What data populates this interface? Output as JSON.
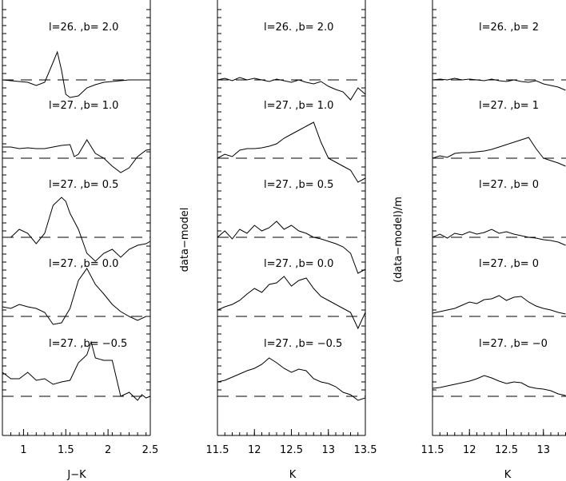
{
  "colors": {
    "ink": "#000000",
    "background": "#ffffff"
  },
  "chart_data": [
    {
      "type": "line",
      "xlabel": "J−K",
      "ylabel": "",
      "xlim": [
        0.75,
        2.5
      ],
      "xticks": [
        1,
        1.5,
        2,
        2.5
      ],
      "xticklabels": [
        "1",
        "1.5",
        "2",
        "2.5"
      ],
      "baseline": "dashed",
      "series": [
        {
          "name": "l=26. ,b=  2.0",
          "x": [
            0.75,
            0.85,
            0.95,
            1.05,
            1.15,
            1.25,
            1.35,
            1.4,
            1.45,
            1.5,
            1.55,
            1.65,
            1.75,
            1.85,
            1.95,
            2.05,
            2.15,
            2.25,
            2.35,
            2.45,
            2.5
          ],
          "y": [
            0.0,
            -0.01,
            -0.02,
            -0.03,
            -0.07,
            -0.03,
            0.22,
            0.35,
            0.12,
            -0.18,
            -0.22,
            -0.2,
            -0.1,
            -0.06,
            -0.03,
            -0.02,
            -0.01,
            0.0,
            0.0,
            0.0,
            0.0
          ]
        },
        {
          "name": "l=27. ,b=  1.0",
          "x": [
            0.75,
            0.85,
            0.95,
            1.05,
            1.15,
            1.25,
            1.35,
            1.45,
            1.55,
            1.6,
            1.65,
            1.75,
            1.85,
            1.95,
            2.05,
            2.15,
            2.25,
            2.35,
            2.45,
            2.5
          ],
          "y": [
            0.14,
            0.14,
            0.12,
            0.13,
            0.12,
            0.12,
            0.14,
            0.16,
            0.17,
            0.02,
            0.05,
            0.23,
            0.06,
            0.0,
            -0.1,
            -0.18,
            -0.12,
            0.02,
            0.1,
            0.11
          ]
        },
        {
          "name": "l=27. ,b=  0.5",
          "x": [
            0.75,
            0.85,
            0.95,
            1.05,
            1.15,
            1.25,
            1.35,
            1.45,
            1.5,
            1.55,
            1.65,
            1.75,
            1.85,
            1.95,
            2.05,
            2.15,
            2.25,
            2.35,
            2.45,
            2.5
          ],
          "y": [
            0.0,
            0.0,
            0.1,
            0.05,
            -0.08,
            0.05,
            0.4,
            0.5,
            0.45,
            0.3,
            0.1,
            -0.2,
            -0.3,
            -0.2,
            -0.15,
            -0.25,
            -0.15,
            -0.1,
            -0.08,
            -0.05
          ]
        },
        {
          "name": "l=27. ,b=  0.0",
          "x": [
            0.75,
            0.85,
            0.95,
            1.05,
            1.15,
            1.25,
            1.35,
            1.45,
            1.55,
            1.65,
            1.75,
            1.85,
            1.95,
            2.05,
            2.15,
            2.25,
            2.35,
            2.45,
            2.5
          ],
          "y": [
            0.12,
            0.1,
            0.15,
            0.12,
            0.1,
            0.05,
            -0.1,
            -0.08,
            0.1,
            0.45,
            0.6,
            0.4,
            0.28,
            0.15,
            0.06,
            0.0,
            -0.05,
            0.0,
            0.0
          ]
        },
        {
          "name": "l=27. ,b= −0.5",
          "x": [
            0.75,
            0.85,
            0.95,
            1.05,
            1.15,
            1.25,
            1.35,
            1.45,
            1.55,
            1.65,
            1.75,
            1.8,
            1.85,
            1.95,
            2.05,
            2.15,
            2.25,
            2.35,
            2.4,
            2.45,
            2.5
          ],
          "y": [
            0.3,
            0.22,
            0.22,
            0.3,
            0.2,
            0.22,
            0.15,
            0.18,
            0.2,
            0.42,
            0.52,
            0.68,
            0.48,
            0.45,
            0.45,
            0.0,
            0.05,
            -0.05,
            0.02,
            -0.02,
            0.0
          ]
        }
      ]
    },
    {
      "type": "line",
      "xlabel": "K",
      "ylabel": "data−model",
      "xlim": [
        11.5,
        13.5
      ],
      "xticks": [
        11.5,
        12,
        12.5,
        13,
        13.5
      ],
      "xticklabels": [
        "11.5",
        "12",
        "12.5",
        "13",
        "13.5"
      ],
      "baseline": "dashed",
      "series": [
        {
          "name": "l=26. ,b=  2.0",
          "x": [
            11.5,
            11.6,
            11.7,
            11.8,
            11.9,
            12.0,
            12.1,
            12.2,
            12.3,
            12.4,
            12.5,
            12.6,
            12.7,
            12.8,
            12.9,
            13.0,
            13.1,
            13.2,
            13.3,
            13.4,
            13.5
          ],
          "y": [
            0.0,
            0.02,
            -0.01,
            0.03,
            0.0,
            0.02,
            0.0,
            -0.02,
            0.01,
            -0.01,
            -0.03,
            0.0,
            -0.03,
            -0.05,
            -0.02,
            -0.08,
            -0.12,
            -0.15,
            -0.25,
            -0.1,
            -0.18
          ]
        },
        {
          "name": "l=27. ,b=  1.0",
          "x": [
            11.5,
            11.6,
            11.7,
            11.8,
            11.9,
            12.0,
            12.1,
            12.2,
            12.3,
            12.4,
            12.5,
            12.6,
            12.7,
            12.8,
            12.9,
            13.0,
            13.1,
            13.2,
            13.3,
            13.4,
            13.5
          ],
          "y": [
            0.0,
            0.05,
            0.02,
            0.1,
            0.12,
            0.12,
            0.13,
            0.15,
            0.18,
            0.25,
            0.3,
            0.35,
            0.4,
            0.45,
            0.2,
            0.0,
            -0.05,
            -0.1,
            -0.15,
            -0.3,
            -0.25
          ]
        },
        {
          "name": "l=27. ,b=  0.5",
          "x": [
            11.5,
            11.6,
            11.7,
            11.8,
            11.9,
            12.0,
            12.1,
            12.2,
            12.3,
            12.4,
            12.5,
            12.6,
            12.7,
            12.8,
            12.9,
            13.0,
            13.1,
            13.2,
            13.3,
            13.4,
            13.5
          ],
          "y": [
            0.0,
            0.08,
            -0.02,
            0.1,
            0.05,
            0.15,
            0.08,
            0.12,
            0.2,
            0.1,
            0.15,
            0.08,
            0.05,
            0.0,
            -0.02,
            -0.05,
            -0.08,
            -0.12,
            -0.2,
            -0.45,
            -0.4
          ]
        },
        {
          "name": "l=27. ,b=  0.0",
          "x": [
            11.5,
            11.6,
            11.7,
            11.8,
            11.9,
            12.0,
            12.1,
            12.2,
            12.3,
            12.4,
            12.5,
            12.6,
            12.7,
            12.8,
            12.9,
            13.0,
            13.1,
            13.2,
            13.3,
            13.4,
            13.5
          ],
          "y": [
            0.08,
            0.12,
            0.15,
            0.2,
            0.28,
            0.35,
            0.3,
            0.4,
            0.42,
            0.5,
            0.38,
            0.45,
            0.48,
            0.35,
            0.25,
            0.2,
            0.15,
            0.1,
            0.05,
            -0.15,
            0.05
          ]
        },
        {
          "name": "l=27. ,b= −0.5",
          "x": [
            11.5,
            11.6,
            11.7,
            11.8,
            11.9,
            12.0,
            12.1,
            12.2,
            12.3,
            12.4,
            12.5,
            12.6,
            12.7,
            12.8,
            12.9,
            13.0,
            13.1,
            13.2,
            13.3,
            13.4,
            13.5
          ],
          "y": [
            0.18,
            0.2,
            0.24,
            0.28,
            0.32,
            0.35,
            0.4,
            0.48,
            0.42,
            0.35,
            0.3,
            0.34,
            0.32,
            0.22,
            0.18,
            0.16,
            0.12,
            0.05,
            0.02,
            -0.05,
            -0.02
          ]
        }
      ]
    },
    {
      "type": "line",
      "xlabel": "K",
      "ylabel": "(data−model)/m",
      "xlim": [
        11.5,
        13.5
      ],
      "xticks": [
        11.5,
        12,
        12.5,
        13
      ],
      "xticklabels": [
        "11.5",
        "12",
        "12.5",
        "13"
      ],
      "baseline": "dashed",
      "series": [
        {
          "name": "l=26. ,b=  2",
          "x": [
            11.5,
            11.6,
            11.7,
            11.8,
            11.9,
            12.0,
            12.1,
            12.2,
            12.3,
            12.4,
            12.5,
            12.6,
            12.7,
            12.8,
            12.9,
            13.0,
            13.1,
            13.2,
            13.3
          ],
          "y": [
            0.0,
            0.01,
            0.0,
            0.02,
            0.0,
            0.01,
            0.0,
            -0.01,
            0.01,
            -0.01,
            -0.02,
            0.0,
            -0.02,
            -0.03,
            -0.01,
            -0.05,
            -0.07,
            -0.09,
            -0.13
          ]
        },
        {
          "name": "l=27. ,b=  1",
          "x": [
            11.5,
            11.6,
            11.7,
            11.8,
            11.9,
            12.0,
            12.1,
            12.2,
            12.3,
            12.4,
            12.5,
            12.6,
            12.7,
            12.8,
            12.9,
            13.0,
            13.1,
            13.2,
            13.3
          ],
          "y": [
            0.0,
            0.03,
            0.01,
            0.06,
            0.07,
            0.07,
            0.08,
            0.09,
            0.11,
            0.14,
            0.17,
            0.2,
            0.23,
            0.26,
            0.12,
            0.0,
            -0.03,
            -0.06,
            -0.1
          ]
        },
        {
          "name": "l=27. ,b=  0",
          "x": [
            11.5,
            11.6,
            11.7,
            11.8,
            11.9,
            12.0,
            12.1,
            12.2,
            12.3,
            12.4,
            12.5,
            12.6,
            12.7,
            12.8,
            12.9,
            13.0,
            13.1,
            13.2,
            13.3
          ],
          "y": [
            0.0,
            0.04,
            -0.01,
            0.05,
            0.03,
            0.07,
            0.04,
            0.06,
            0.1,
            0.05,
            0.07,
            0.04,
            0.02,
            0.0,
            -0.01,
            -0.03,
            -0.04,
            -0.06,
            -0.1
          ]
        },
        {
          "name": "l=27. ,b=  0",
          "x": [
            11.5,
            11.6,
            11.7,
            11.8,
            11.9,
            12.0,
            12.1,
            12.2,
            12.3,
            12.4,
            12.5,
            12.6,
            12.7,
            12.8,
            12.9,
            13.0,
            13.1,
            13.2,
            13.3
          ],
          "y": [
            0.04,
            0.06,
            0.08,
            0.1,
            0.14,
            0.18,
            0.16,
            0.21,
            0.22,
            0.26,
            0.2,
            0.24,
            0.25,
            0.18,
            0.13,
            0.1,
            0.08,
            0.05,
            0.03
          ]
        },
        {
          "name": "l=27. ,b= −0",
          "x": [
            11.5,
            11.6,
            11.7,
            11.8,
            11.9,
            12.0,
            12.1,
            12.2,
            12.3,
            12.4,
            12.5,
            12.6,
            12.7,
            12.8,
            12.9,
            13.0,
            13.1,
            13.2,
            13.3
          ],
          "y": [
            0.1,
            0.11,
            0.13,
            0.15,
            0.17,
            0.19,
            0.22,
            0.26,
            0.23,
            0.19,
            0.16,
            0.18,
            0.17,
            0.12,
            0.1,
            0.09,
            0.07,
            0.03,
            0.01
          ]
        }
      ]
    }
  ]
}
